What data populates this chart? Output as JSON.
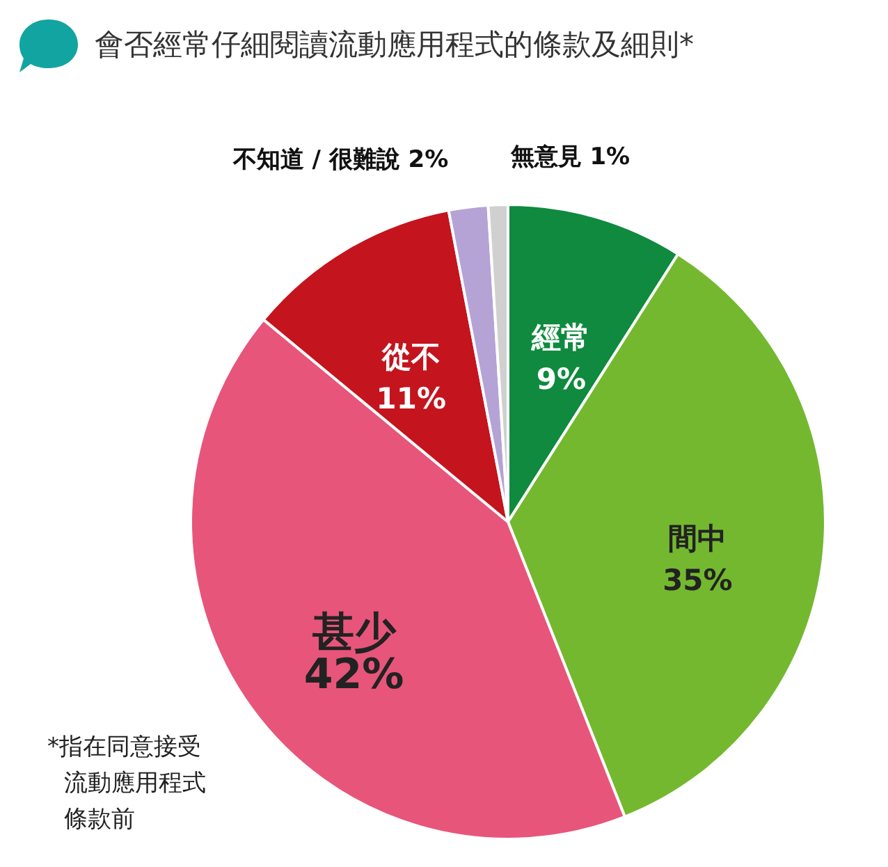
{
  "chart_data": {
    "type": "pie",
    "title": "會否經常仔細閱讀流動應用程式的條款及細則*",
    "categories": [
      "經常",
      "間中",
      "甚少",
      "從不",
      "不知道 / 很難說",
      "無意見"
    ],
    "values": [
      9,
      35,
      42,
      11,
      2,
      1
    ],
    "value_labels": [
      "9%",
      "35%",
      "42%",
      "11%",
      "2%",
      "1%"
    ],
    "colors": [
      "#0f8a3e",
      "#74b82f",
      "#e8557a",
      "#c4141d",
      "#b5a3d6",
      "#cfd0cf"
    ],
    "annotations": [
      "*指在同意接受流動應用程式條款前"
    ]
  }
}
